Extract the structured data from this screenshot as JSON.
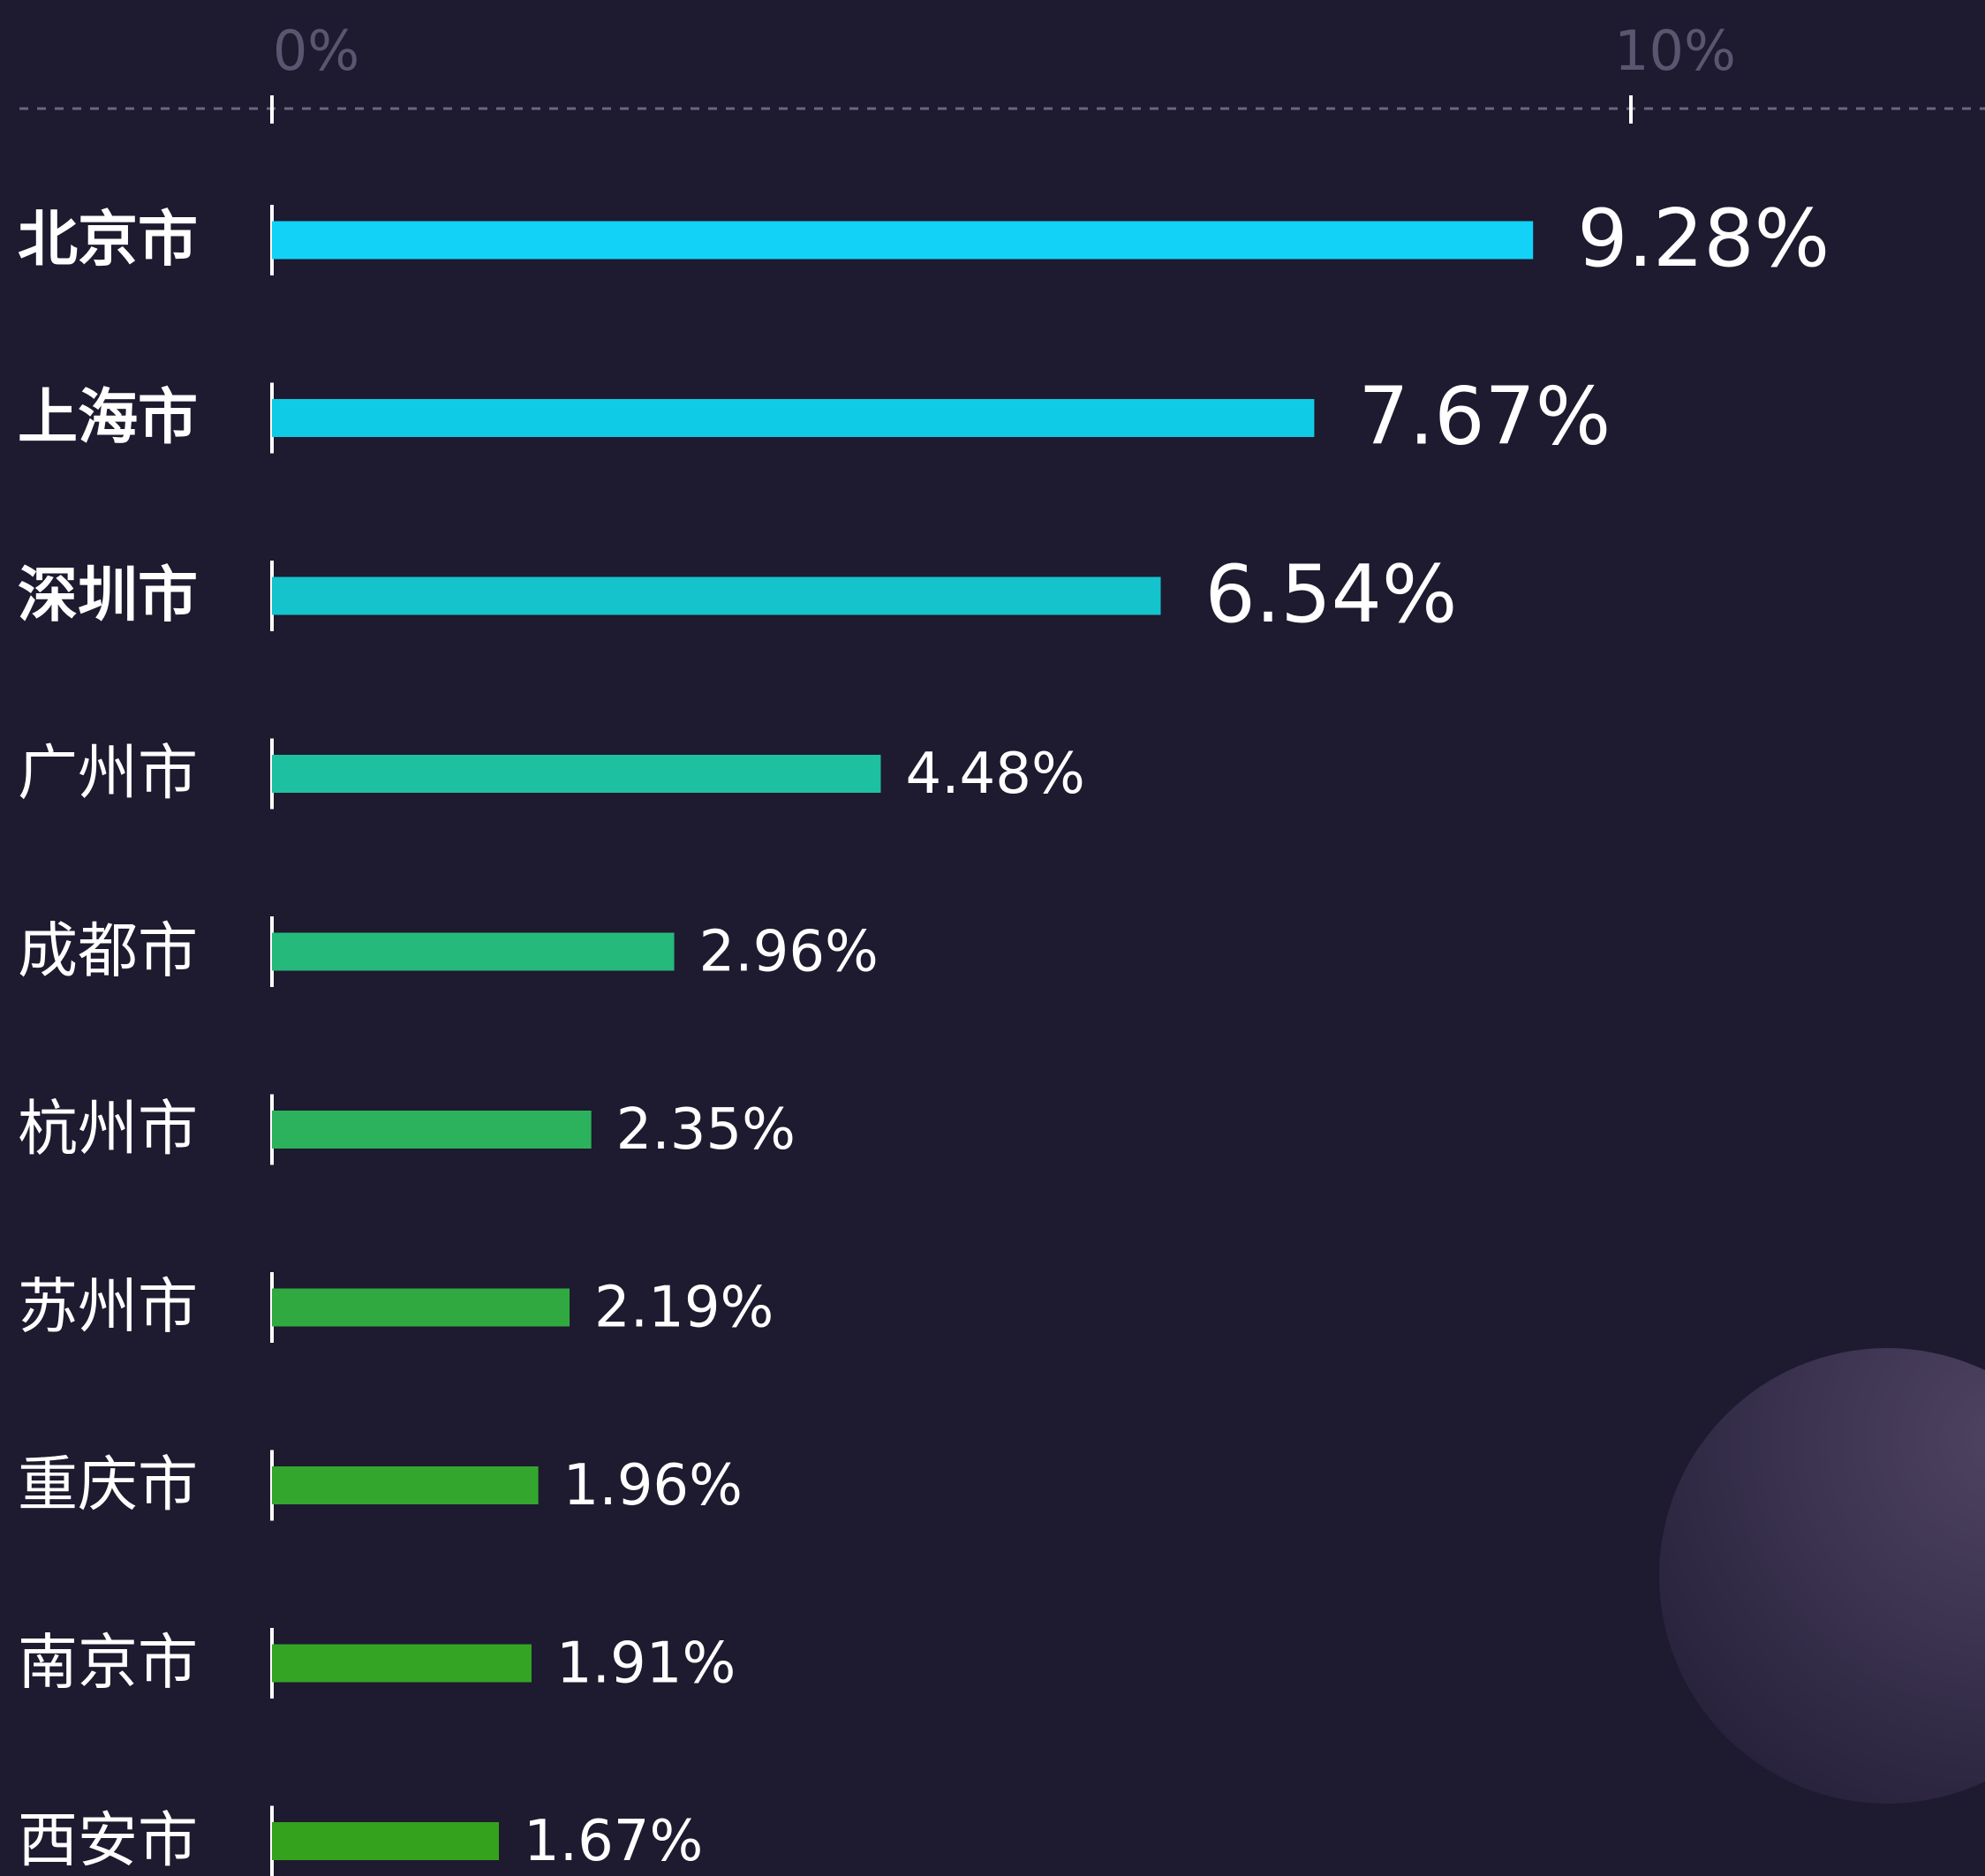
{
  "chart_data": {
    "type": "bar",
    "orientation": "horizontal",
    "categories": [
      "北京市",
      "上海市",
      "深圳市",
      "广州市",
      "成都市",
      "杭州市",
      "苏州市",
      "重庆市",
      "南京市",
      "西安市"
    ],
    "values": [
      9.28,
      7.67,
      6.54,
      4.48,
      2.96,
      2.35,
      2.19,
      1.96,
      1.91,
      1.67
    ],
    "value_labels": [
      "9.28%",
      "7.67%",
      "6.54%",
      "4.48%",
      "2.96%",
      "2.35%",
      "2.19%",
      "1.96%",
      "1.91%",
      "1.67%"
    ],
    "colors": [
      "#12d2f8",
      "#0fcbe6",
      "#14c3cc",
      "#1ec0a2",
      "#26b97c",
      "#2cb25c",
      "#30aa40",
      "#33a62e",
      "#34a425",
      "#35a21d"
    ],
    "xlim": [
      0,
      10
    ],
    "xticks": [
      {
        "value": 0,
        "label": "0%"
      },
      {
        "value": 10,
        "label": "10%"
      }
    ],
    "grid": false
  }
}
